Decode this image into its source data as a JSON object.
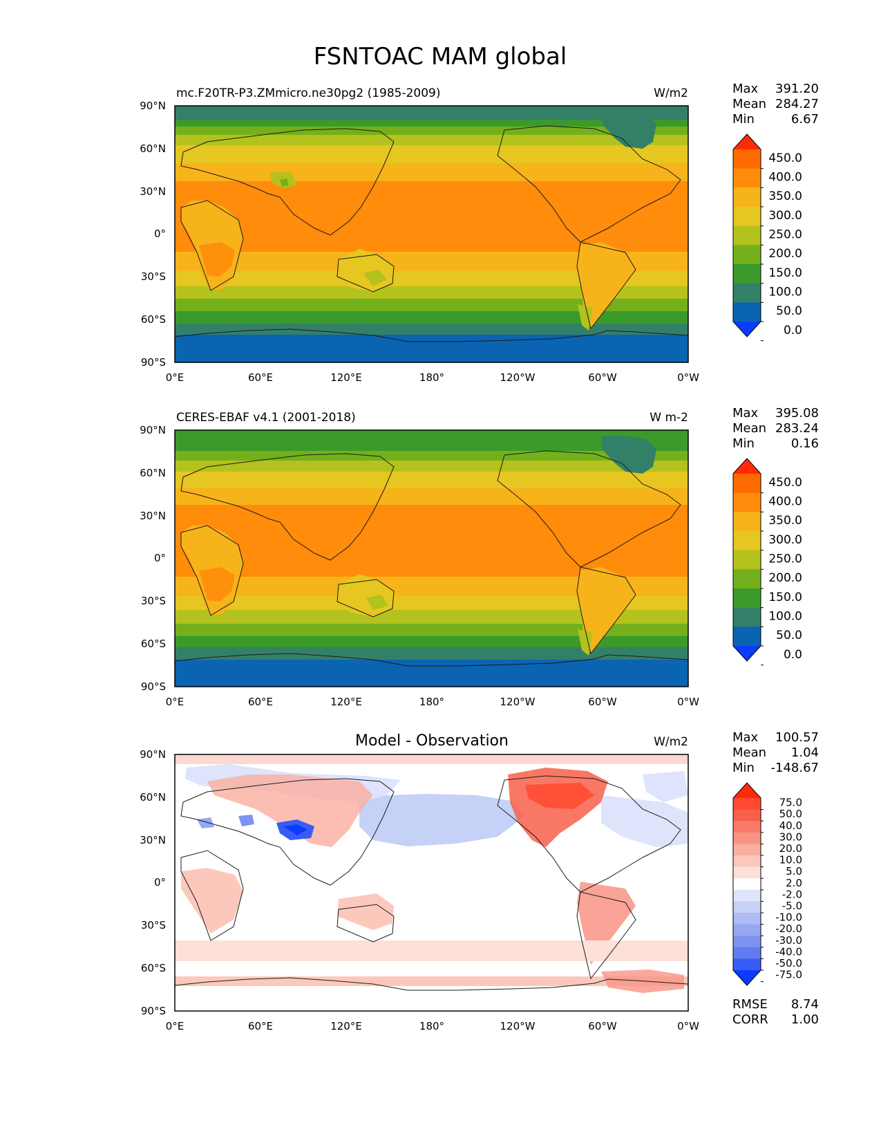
{
  "title": "FSNTOAC MAM global",
  "lat_labels": [
    "90°N",
    "60°N",
    "30°N",
    "0°",
    "30°S",
    "60°S",
    "90°S"
  ],
  "lon_labels": [
    "0°E",
    "60°E",
    "120°E",
    "180°",
    "120°W",
    "60°W",
    "0°W"
  ],
  "panels": [
    {
      "id": "model",
      "left_title": "mc.F20TR-P3.ZMmicro.ne30pg2 (1985-2009)",
      "center_title": "",
      "units": "W/m2",
      "stats": [
        {
          "label": "Max",
          "value": "391.20"
        },
        {
          "label": "Mean",
          "value": "284.27"
        },
        {
          "label": "Min",
          "value": "6.67"
        }
      ],
      "colorbar": {
        "ticks": [
          "450.0",
          "400.0",
          "350.0",
          "300.0",
          "250.0",
          "200.0",
          "150.0",
          "100.0",
          "50.0",
          "0.0"
        ],
        "colors_top_to_bottom": [
          "#ff2a0a",
          "#ff6a00",
          "#ff8c0a",
          "#f7b31a",
          "#e6c620",
          "#b3c21c",
          "#74b01c",
          "#3a9a2a",
          "#338068",
          "#0a64b2",
          "#0a3cff"
        ]
      },
      "fields_top_to_bottom": [
        {
          "level": "<50",
          "color": "#0a64b2"
        },
        {
          "level": "50-100",
          "color": "#338068"
        },
        {
          "level": "100-150",
          "color": "#3a9a2a"
        },
        {
          "level": "150-200",
          "color": "#74b01c"
        },
        {
          "level": "200-250",
          "color": "#b3c21c"
        },
        {
          "level": "250-300",
          "color": "#e6c620"
        },
        {
          "level": "300-350",
          "color": "#f7b31a"
        },
        {
          "level": "350-400",
          "color": "#ff8c0a"
        }
      ]
    },
    {
      "id": "obs",
      "left_title": "CERES-EBAF v4.1 (2001-2018)",
      "center_title": "",
      "units": "W m-2",
      "stats": [
        {
          "label": "Max",
          "value": "395.08"
        },
        {
          "label": "Mean",
          "value": "283.24"
        },
        {
          "label": "Min",
          "value": "0.16"
        }
      ],
      "colorbar": {
        "ticks": [
          "450.0",
          "400.0",
          "350.0",
          "300.0",
          "250.0",
          "200.0",
          "150.0",
          "100.0",
          "50.0",
          "0.0"
        ],
        "colors_top_to_bottom": [
          "#ff2a0a",
          "#ff6a00",
          "#ff8c0a",
          "#f7b31a",
          "#e6c620",
          "#b3c21c",
          "#74b01c",
          "#3a9a2a",
          "#338068",
          "#0a64b2",
          "#0a3cff"
        ]
      }
    },
    {
      "id": "diff",
      "left_title": "",
      "center_title": "Model - Observation",
      "units": "W/m2",
      "stats": [
        {
          "label": "Max",
          "value": "100.57"
        },
        {
          "label": "Mean",
          "value": "1.04"
        },
        {
          "label": "Min",
          "value": "-148.67"
        }
      ],
      "colorbar": {
        "ticks": [
          "75.0",
          "50.0",
          "40.0",
          "30.0",
          "20.0",
          "10.0",
          "5.0",
          "2.0",
          "-2.0",
          "-5.0",
          "-10.0",
          "-20.0",
          "-30.0",
          "-40.0",
          "-50.0",
          "-75.0"
        ],
        "colors_top_to_bottom": [
          "#ff2a0a",
          "#ff4a30",
          "#f8604a",
          "#f87a68",
          "#f89484",
          "#fbaea0",
          "#fcc8bc",
          "#fde0d8",
          "#ffffff",
          "#dde4fb",
          "#c6d1f8",
          "#aebcf5",
          "#96a8f2",
          "#7e93ef",
          "#607cf0",
          "#3a5cf6",
          "#0a3cff"
        ]
      },
      "rmse_label": "RMSE",
      "rmse_value": "8.74",
      "corr_label": "CORR",
      "corr_value": "1.00"
    }
  ]
}
